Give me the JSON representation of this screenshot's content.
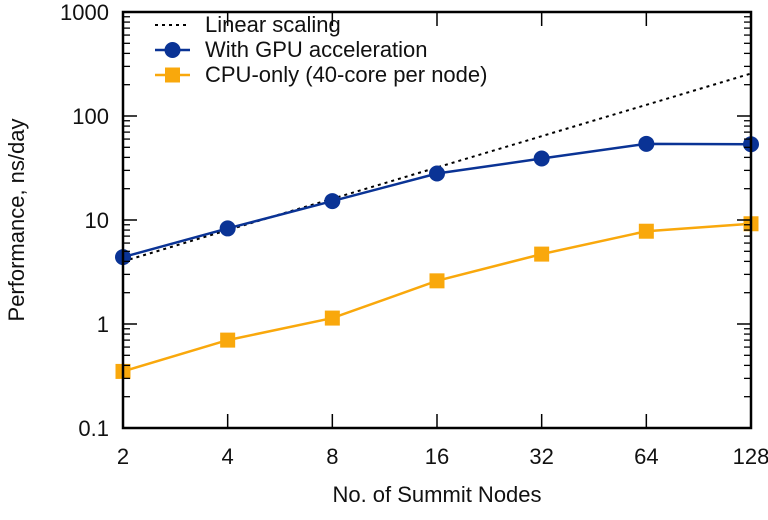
{
  "chart_data": {
    "type": "line",
    "title": "",
    "xlabel": "No. of Summit Nodes",
    "ylabel": "Performance, ns/day",
    "x_scale": "log2",
    "y_scale": "log10",
    "x": [
      2,
      4,
      8,
      16,
      32,
      64,
      128
    ],
    "x_tick_labels": [
      "2",
      "4",
      "8",
      "16",
      "32",
      "64",
      "128"
    ],
    "xlim": [
      2,
      128
    ],
    "ylim": [
      0.1,
      1000
    ],
    "y_ticks": [
      0.1,
      1,
      10,
      100,
      1000
    ],
    "y_tick_labels": [
      "0.1",
      "1",
      "10",
      "100",
      "1000"
    ],
    "grid": false,
    "legend_position": "top-left",
    "series": [
      {
        "name": "Linear scaling",
        "style": "dotted",
        "marker": "none",
        "color": "#000000",
        "x": [
          2,
          128
        ],
        "values": [
          4.0,
          256.0
        ]
      },
      {
        "name": "With GPU acceleration",
        "style": "solid",
        "marker": "circle",
        "color": "#0a3395",
        "values": [
          4.4,
          8.3,
          15.2,
          28,
          39,
          54,
          53.5
        ]
      },
      {
        "name": "CPU-only (40-core per node)",
        "style": "solid",
        "marker": "square",
        "color": "#f9a80c",
        "values": [
          0.35,
          0.7,
          1.14,
          2.6,
          4.7,
          7.8,
          9.2
        ]
      }
    ]
  }
}
